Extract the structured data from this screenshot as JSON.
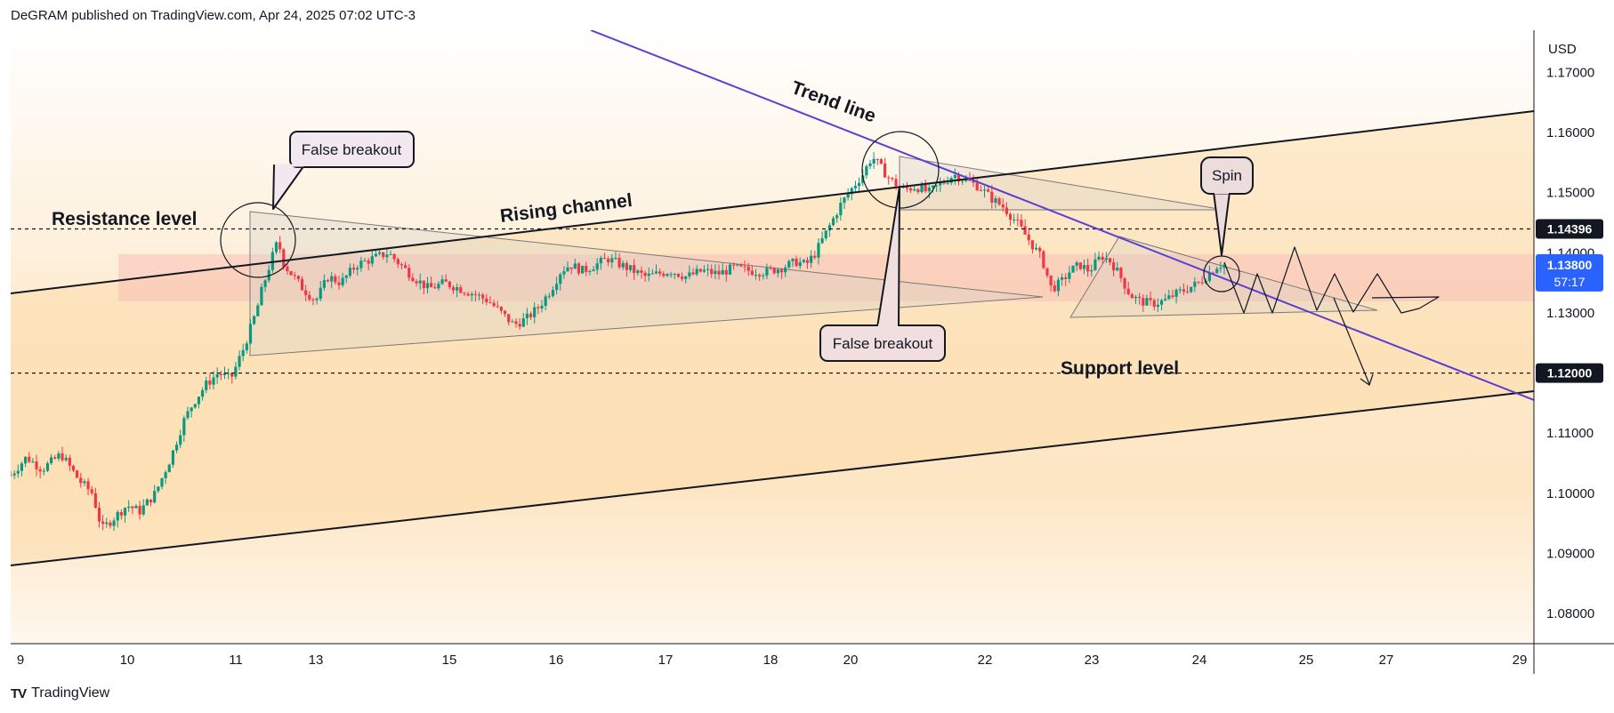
{
  "header": {
    "publisher_line": "DeGRAM published on TradingView.com, Apr 24, 2025 07:02 UTC-3"
  },
  "footer": {
    "brand_logo": "TV",
    "brand_label": "TradingView"
  },
  "colors": {
    "bull": "#089981",
    "bear": "#f23645",
    "trend_line": "#5b3fd3",
    "price_badge": "#2962ff",
    "level_badge": "#131722",
    "zone": "#f9c0b8",
    "bg_warm": "#fde6c4"
  },
  "chart_data": {
    "type": "candlestick",
    "currency": "USD",
    "ylim": [
      1.075,
      1.177
    ],
    "y_ticks": [
      "1.17000",
      "1.16000",
      "1.15000",
      "1.14000",
      "1.13000",
      "1.12000",
      "1.11000",
      "1.10000",
      "1.09000",
      "1.08000"
    ],
    "x_ticks": [
      "9",
      "10",
      "11",
      "13",
      "15",
      "16",
      "17",
      "18",
      "20",
      "22",
      "23",
      "24",
      "25",
      "27",
      "29"
    ],
    "price_labels": [
      {
        "value": 1.14396,
        "label": "1.14396",
        "style": "level"
      },
      {
        "value": 1.138,
        "label": "1.13800",
        "sublabel": "57:17",
        "style": "current"
      },
      {
        "value": 1.12,
        "label": "1.12000",
        "style": "level"
      }
    ],
    "price_path": [
      [
        0,
        1.103
      ],
      [
        0.5,
        1.106
      ],
      [
        1.0,
        1.104
      ],
      [
        1.6,
        1.1065
      ],
      [
        2.2,
        1.102
      ],
      [
        2.6,
        1.1
      ],
      [
        2.9,
        1.094
      ],
      [
        3.3,
        1.096
      ],
      [
        3.7,
        1.098
      ],
      [
        4.1,
        1.097
      ],
      [
        4.6,
        1.1
      ],
      [
        5.1,
        1.106
      ],
      [
        5.5,
        1.112
      ],
      [
        5.8,
        1.115
      ],
      [
        6.2,
        1.118
      ],
      [
        6.6,
        1.12
      ],
      [
        7.0,
        1.119
      ],
      [
        7.4,
        1.124
      ],
      [
        7.8,
        1.13
      ],
      [
        8.0,
        1.134
      ],
      [
        8.3,
        1.139
      ],
      [
        8.5,
        1.142
      ],
      [
        8.7,
        1.138
      ],
      [
        9.0,
        1.136
      ],
      [
        9.3,
        1.134
      ],
      [
        9.7,
        1.132
      ],
      [
        10.1,
        1.136
      ],
      [
        10.5,
        1.135
      ],
      [
        11.0,
        1.138
      ],
      [
        11.5,
        1.139
      ],
      [
        12.0,
        1.14
      ],
      [
        12.4,
        1.138
      ],
      [
        12.8,
        1.136
      ],
      [
        13.3,
        1.134
      ],
      [
        13.8,
        1.135
      ],
      [
        14.3,
        1.134
      ],
      [
        14.8,
        1.133
      ],
      [
        15.2,
        1.132
      ],
      [
        15.6,
        1.13
      ],
      [
        16.0,
        1.128
      ],
      [
        16.4,
        1.129
      ],
      [
        16.8,
        1.131
      ],
      [
        17.2,
        1.134
      ],
      [
        17.5,
        1.137
      ],
      [
        17.8,
        1.138
      ],
      [
        18.2,
        1.137
      ],
      [
        18.6,
        1.138
      ],
      [
        19.0,
        1.139
      ],
      [
        19.4,
        1.138
      ],
      [
        19.8,
        1.137
      ],
      [
        20.2,
        1.136
      ],
      [
        20.6,
        1.1365
      ],
      [
        21.0,
        1.137
      ],
      [
        21.5,
        1.136
      ],
      [
        22.0,
        1.137
      ],
      [
        22.5,
        1.1365
      ],
      [
        23.0,
        1.1375
      ],
      [
        23.5,
        1.137
      ],
      [
        24.0,
        1.1368
      ],
      [
        24.5,
        1.1375
      ],
      [
        25.0,
        1.1385
      ],
      [
        25.3,
        1.138
      ],
      [
        25.6,
        1.14
      ],
      [
        26.0,
        1.144
      ],
      [
        26.4,
        1.148
      ],
      [
        26.8,
        1.151
      ],
      [
        27.1,
        1.153
      ],
      [
        27.4,
        1.156
      ],
      [
        27.7,
        1.154
      ],
      [
        28.0,
        1.152
      ],
      [
        28.4,
        1.1505
      ],
      [
        28.8,
        1.151
      ],
      [
        29.2,
        1.15
      ],
      [
        29.6,
        1.1515
      ],
      [
        30.0,
        1.153
      ],
      [
        30.4,
        1.152
      ],
      [
        30.8,
        1.151
      ],
      [
        31.2,
        1.149
      ],
      [
        31.6,
        1.1475
      ],
      [
        32.0,
        1.145
      ],
      [
        32.4,
        1.142
      ],
      [
        32.8,
        1.139
      ],
      [
        33.1,
        1.134
      ],
      [
        33.4,
        1.135
      ],
      [
        33.7,
        1.137
      ],
      [
        34.0,
        1.138
      ],
      [
        34.3,
        1.137
      ],
      [
        34.7,
        1.1395
      ],
      [
        35.0,
        1.1385
      ],
      [
        35.3,
        1.136
      ],
      [
        35.6,
        1.133
      ],
      [
        35.9,
        1.132
      ],
      [
        36.3,
        1.1315
      ],
      [
        36.7,
        1.132
      ],
      [
        37.0,
        1.133
      ],
      [
        37.4,
        1.134
      ],
      [
        37.8,
        1.135
      ],
      [
        38.1,
        1.1365
      ],
      [
        38.4,
        1.138
      ],
      [
        38.6,
        1.138
      ]
    ],
    "annotations": {
      "texts": [
        "Resistance level",
        "Rising channel",
        "Trend line",
        "Support level"
      ],
      "callouts": [
        {
          "text": "False breakout"
        },
        {
          "text": "False breakout"
        },
        {
          "text": "Spin"
        }
      ]
    }
  }
}
